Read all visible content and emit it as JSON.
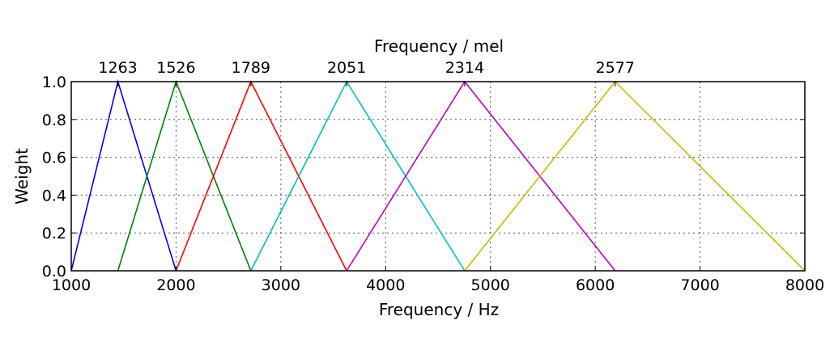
{
  "chart_data": {
    "type": "line",
    "xlabel": "Frequency / Hz",
    "ylabel": "Weight",
    "top_axis_label": "Frequency / mel",
    "xlim": [
      1000,
      8000
    ],
    "ylim": [
      0,
      1.0
    ],
    "x_ticks": [
      1000,
      2000,
      3000,
      4000,
      5000,
      6000,
      7000,
      8000
    ],
    "x_tick_labels": [
      "1000",
      "2000",
      "3000",
      "4000",
      "5000",
      "6000",
      "7000",
      "8000"
    ],
    "y_ticks": [
      0.0,
      0.2,
      0.4,
      0.6,
      0.8,
      1.0
    ],
    "y_tick_labels": [
      "0.0",
      "0.2",
      "0.4",
      "0.6",
      "0.8",
      "1.0"
    ],
    "top_ticks_hz": [
      1000,
      1445,
      2000,
      2714,
      3628,
      4754,
      6190,
      8000
    ],
    "mel_peak_labels": [
      "1263",
      "1526",
      "1789",
      "2051",
      "2314",
      "2577"
    ],
    "grid": true,
    "series": [
      {
        "color": "#0000ff",
        "x": [
          1000,
          1445,
          2000
        ],
        "y": [
          0,
          1,
          0
        ]
      },
      {
        "color": "#008000",
        "x": [
          1445,
          2000,
          2714
        ],
        "y": [
          0,
          1,
          0
        ]
      },
      {
        "color": "#ff0000",
        "x": [
          2000,
          2714,
          3628
        ],
        "y": [
          0,
          1,
          0
        ]
      },
      {
        "color": "#00bfbf",
        "x": [
          2714,
          3628,
          4754
        ],
        "y": [
          0,
          1,
          0
        ]
      },
      {
        "color": "#bf00bf",
        "x": [
          3628,
          4754,
          6190
        ],
        "y": [
          0,
          1,
          0
        ]
      },
      {
        "color": "#bfbf00",
        "x": [
          4754,
          6190,
          8000
        ],
        "y": [
          0,
          1,
          0
        ]
      }
    ]
  }
}
